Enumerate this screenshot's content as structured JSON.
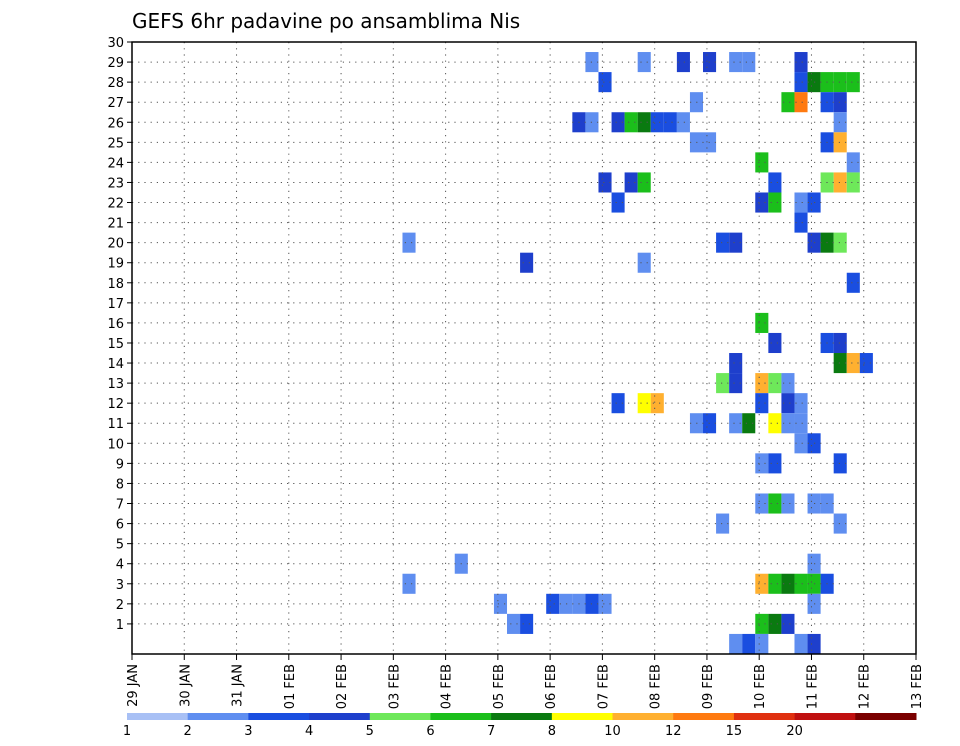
{
  "chart_data": {
    "type": "heatmap",
    "title": "GEFS 6hr padavine po ansamblima Nis",
    "xlabel": "",
    "ylabel": "",
    "ylim": [
      0,
      30
    ],
    "yticks": [
      1,
      2,
      3,
      4,
      5,
      6,
      7,
      8,
      9,
      10,
      11,
      12,
      13,
      14,
      15,
      16,
      17,
      18,
      19,
      20,
      21,
      22,
      23,
      24,
      25,
      26,
      27,
      28,
      29,
      30
    ],
    "xticks": [
      "29 JAN",
      "30 JAN",
      "31 JAN",
      "01 FEB",
      "02 FEB",
      "03 FEB",
      "04 FEB",
      "05 FEB",
      "06 FEB",
      "07 FEB",
      "08 FEB",
      "09 FEB",
      "10 FEB",
      "11 FEB",
      "12 FEB",
      "13 FEB"
    ],
    "time_step": "6hr",
    "grid": true,
    "legend": {
      "position": "bottom",
      "levels": [
        "1",
        "2",
        "3",
        "4",
        "5",
        "6",
        "7",
        "8",
        "10",
        "12",
        "15",
        "20"
      ],
      "colors": [
        "#a8c0f5",
        "#5f8ef0",
        "#1a4ee0",
        "#1e3fcc",
        "#6ee85a",
        "#1bbf1b",
        "#0a7a10",
        "#ffff00",
        "#ffb030",
        "#ff7a10",
        "#e03010",
        "#c01010",
        "#7a0000"
      ]
    },
    "cells": [
      {
        "x": 8.8,
        "y": 29,
        "v": 1
      },
      {
        "x": 9.8,
        "y": 29,
        "v": 1
      },
      {
        "x": 10.55,
        "y": 29,
        "v": 3
      },
      {
        "x": 11.05,
        "y": 29,
        "v": 3
      },
      {
        "x": 11.55,
        "y": 29,
        "v": 1
      },
      {
        "x": 11.8,
        "y": 29,
        "v": 1
      },
      {
        "x": 12.8,
        "y": 29,
        "v": 3
      },
      {
        "x": 9.05,
        "y": 28,
        "v": 2
      },
      {
        "x": 12.8,
        "y": 28,
        "v": 2
      },
      {
        "x": 13.05,
        "y": 28,
        "v": 6
      },
      {
        "x": 13.3,
        "y": 28,
        "v": 5
      },
      {
        "x": 13.55,
        "y": 28,
        "v": 5
      },
      {
        "x": 13.8,
        "y": 28,
        "v": 5
      },
      {
        "x": 10.8,
        "y": 27,
        "v": 1
      },
      {
        "x": 12.55,
        "y": 27,
        "v": 5
      },
      {
        "x": 12.8,
        "y": 27,
        "v": 9
      },
      {
        "x": 13.3,
        "y": 27,
        "v": 2
      },
      {
        "x": 13.55,
        "y": 27,
        "v": 3
      },
      {
        "x": 8.55,
        "y": 26,
        "v": 3
      },
      {
        "x": 8.8,
        "y": 26,
        "v": 1
      },
      {
        "x": 9.3,
        "y": 26,
        "v": 3
      },
      {
        "x": 9.55,
        "y": 26,
        "v": 5
      },
      {
        "x": 9.8,
        "y": 26,
        "v": 6
      },
      {
        "x": 10.05,
        "y": 26,
        "v": 2
      },
      {
        "x": 10.3,
        "y": 26,
        "v": 2
      },
      {
        "x": 10.55,
        "y": 26,
        "v": 1
      },
      {
        "x": 13.55,
        "y": 26,
        "v": 1
      },
      {
        "x": 10.8,
        "y": 25,
        "v": 1
      },
      {
        "x": 11.05,
        "y": 25,
        "v": 1
      },
      {
        "x": 13.3,
        "y": 25,
        "v": 2
      },
      {
        "x": 13.55,
        "y": 25,
        "v": 8
      },
      {
        "x": 12.05,
        "y": 24,
        "v": 5
      },
      {
        "x": 13.8,
        "y": 24,
        "v": 1
      },
      {
        "x": 9.05,
        "y": 23,
        "v": 3
      },
      {
        "x": 9.55,
        "y": 23,
        "v": 3
      },
      {
        "x": 9.8,
        "y": 23,
        "v": 5
      },
      {
        "x": 12.3,
        "y": 23,
        "v": 2
      },
      {
        "x": 13.3,
        "y": 23,
        "v": 4
      },
      {
        "x": 13.55,
        "y": 23,
        "v": 8
      },
      {
        "x": 13.8,
        "y": 23,
        "v": 4
      },
      {
        "x": 9.3,
        "y": 22,
        "v": 2
      },
      {
        "x": 12.05,
        "y": 22,
        "v": 3
      },
      {
        "x": 12.3,
        "y": 22,
        "v": 5
      },
      {
        "x": 12.8,
        "y": 22,
        "v": 1
      },
      {
        "x": 13.05,
        "y": 22,
        "v": 2
      },
      {
        "x": 12.8,
        "y": 21,
        "v": 2
      },
      {
        "x": 5.3,
        "y": 20,
        "v": 1
      },
      {
        "x": 11.3,
        "y": 20,
        "v": 2
      },
      {
        "x": 11.55,
        "y": 20,
        "v": 3
      },
      {
        "x": 13.05,
        "y": 20,
        "v": 3
      },
      {
        "x": 13.3,
        "y": 20,
        "v": 6
      },
      {
        "x": 13.55,
        "y": 20,
        "v": 4
      },
      {
        "x": 7.55,
        "y": 19,
        "v": 3
      },
      {
        "x": 9.8,
        "y": 19,
        "v": 1
      },
      {
        "x": 13.8,
        "y": 18,
        "v": 2
      },
      {
        "x": 12.05,
        "y": 16,
        "v": 5
      },
      {
        "x": 12.3,
        "y": 15,
        "v": 3
      },
      {
        "x": 13.3,
        "y": 15,
        "v": 2
      },
      {
        "x": 13.55,
        "y": 15,
        "v": 3
      },
      {
        "x": 11.55,
        "y": 14,
        "v": 3
      },
      {
        "x": 13.55,
        "y": 14,
        "v": 6
      },
      {
        "x": 13.8,
        "y": 14,
        "v": 8
      },
      {
        "x": 14.05,
        "y": 14,
        "v": 2
      },
      {
        "x": 11.3,
        "y": 13,
        "v": 4
      },
      {
        "x": 11.55,
        "y": 13,
        "v": 3
      },
      {
        "x": 12.05,
        "y": 13,
        "v": 8
      },
      {
        "x": 12.3,
        "y": 13,
        "v": 4
      },
      {
        "x": 12.55,
        "y": 13,
        "v": 1
      },
      {
        "x": 9.3,
        "y": 12,
        "v": 2
      },
      {
        "x": 9.8,
        "y": 12,
        "v": 7
      },
      {
        "x": 10.05,
        "y": 12,
        "v": 8
      },
      {
        "x": 12.05,
        "y": 12,
        "v": 2
      },
      {
        "x": 12.55,
        "y": 12,
        "v": 3
      },
      {
        "x": 12.8,
        "y": 12,
        "v": 1
      },
      {
        "x": 10.8,
        "y": 11,
        "v": 1
      },
      {
        "x": 11.05,
        "y": 11,
        "v": 2
      },
      {
        "x": 11.55,
        "y": 11,
        "v": 1
      },
      {
        "x": 11.8,
        "y": 11,
        "v": 6
      },
      {
        "x": 12.3,
        "y": 11,
        "v": 7
      },
      {
        "x": 12.55,
        "y": 11,
        "v": 1
      },
      {
        "x": 12.8,
        "y": 11,
        "v": 1
      },
      {
        "x": 12.8,
        "y": 10,
        "v": 1
      },
      {
        "x": 13.05,
        "y": 10,
        "v": 2
      },
      {
        "x": 12.05,
        "y": 9,
        "v": 1
      },
      {
        "x": 12.3,
        "y": 9,
        "v": 2
      },
      {
        "x": 13.55,
        "y": 9,
        "v": 2
      },
      {
        "x": 12.05,
        "y": 7,
        "v": 1
      },
      {
        "x": 12.3,
        "y": 7,
        "v": 5
      },
      {
        "x": 12.55,
        "y": 7,
        "v": 1
      },
      {
        "x": 13.05,
        "y": 7,
        "v": 1
      },
      {
        "x": 13.3,
        "y": 7,
        "v": 1
      },
      {
        "x": 11.3,
        "y": 6,
        "v": 1
      },
      {
        "x": 13.55,
        "y": 6,
        "v": 1
      },
      {
        "x": 6.3,
        "y": 4,
        "v": 1
      },
      {
        "x": 13.05,
        "y": 4,
        "v": 1
      },
      {
        "x": 5.3,
        "y": 3,
        "v": 1
      },
      {
        "x": 12.05,
        "y": 3,
        "v": 8
      },
      {
        "x": 12.3,
        "y": 3,
        "v": 5
      },
      {
        "x": 12.55,
        "y": 3,
        "v": 6
      },
      {
        "x": 12.8,
        "y": 3,
        "v": 5
      },
      {
        "x": 13.05,
        "y": 3,
        "v": 5
      },
      {
        "x": 13.3,
        "y": 3,
        "v": 2
      },
      {
        "x": 7.05,
        "y": 2,
        "v": 1
      },
      {
        "x": 8.05,
        "y": 2,
        "v": 2
      },
      {
        "x": 8.3,
        "y": 2,
        "v": 1
      },
      {
        "x": 8.55,
        "y": 2,
        "v": 1
      },
      {
        "x": 8.8,
        "y": 2,
        "v": 2
      },
      {
        "x": 9.05,
        "y": 2,
        "v": 1
      },
      {
        "x": 13.05,
        "y": 2,
        "v": 1
      },
      {
        "x": 7.3,
        "y": 1,
        "v": 1
      },
      {
        "x": 7.55,
        "y": 1,
        "v": 2
      },
      {
        "x": 12.05,
        "y": 1,
        "v": 5
      },
      {
        "x": 12.3,
        "y": 1,
        "v": 6
      },
      {
        "x": 12.55,
        "y": 1,
        "v": 3
      },
      {
        "x": 11.55,
        "y": 0,
        "v": 1
      },
      {
        "x": 11.8,
        "y": 0,
        "v": 2
      },
      {
        "x": 12.05,
        "y": 0,
        "v": 1
      },
      {
        "x": 12.8,
        "y": 0,
        "v": 1
      },
      {
        "x": 13.05,
        "y": 0,
        "v": 3
      }
    ]
  }
}
